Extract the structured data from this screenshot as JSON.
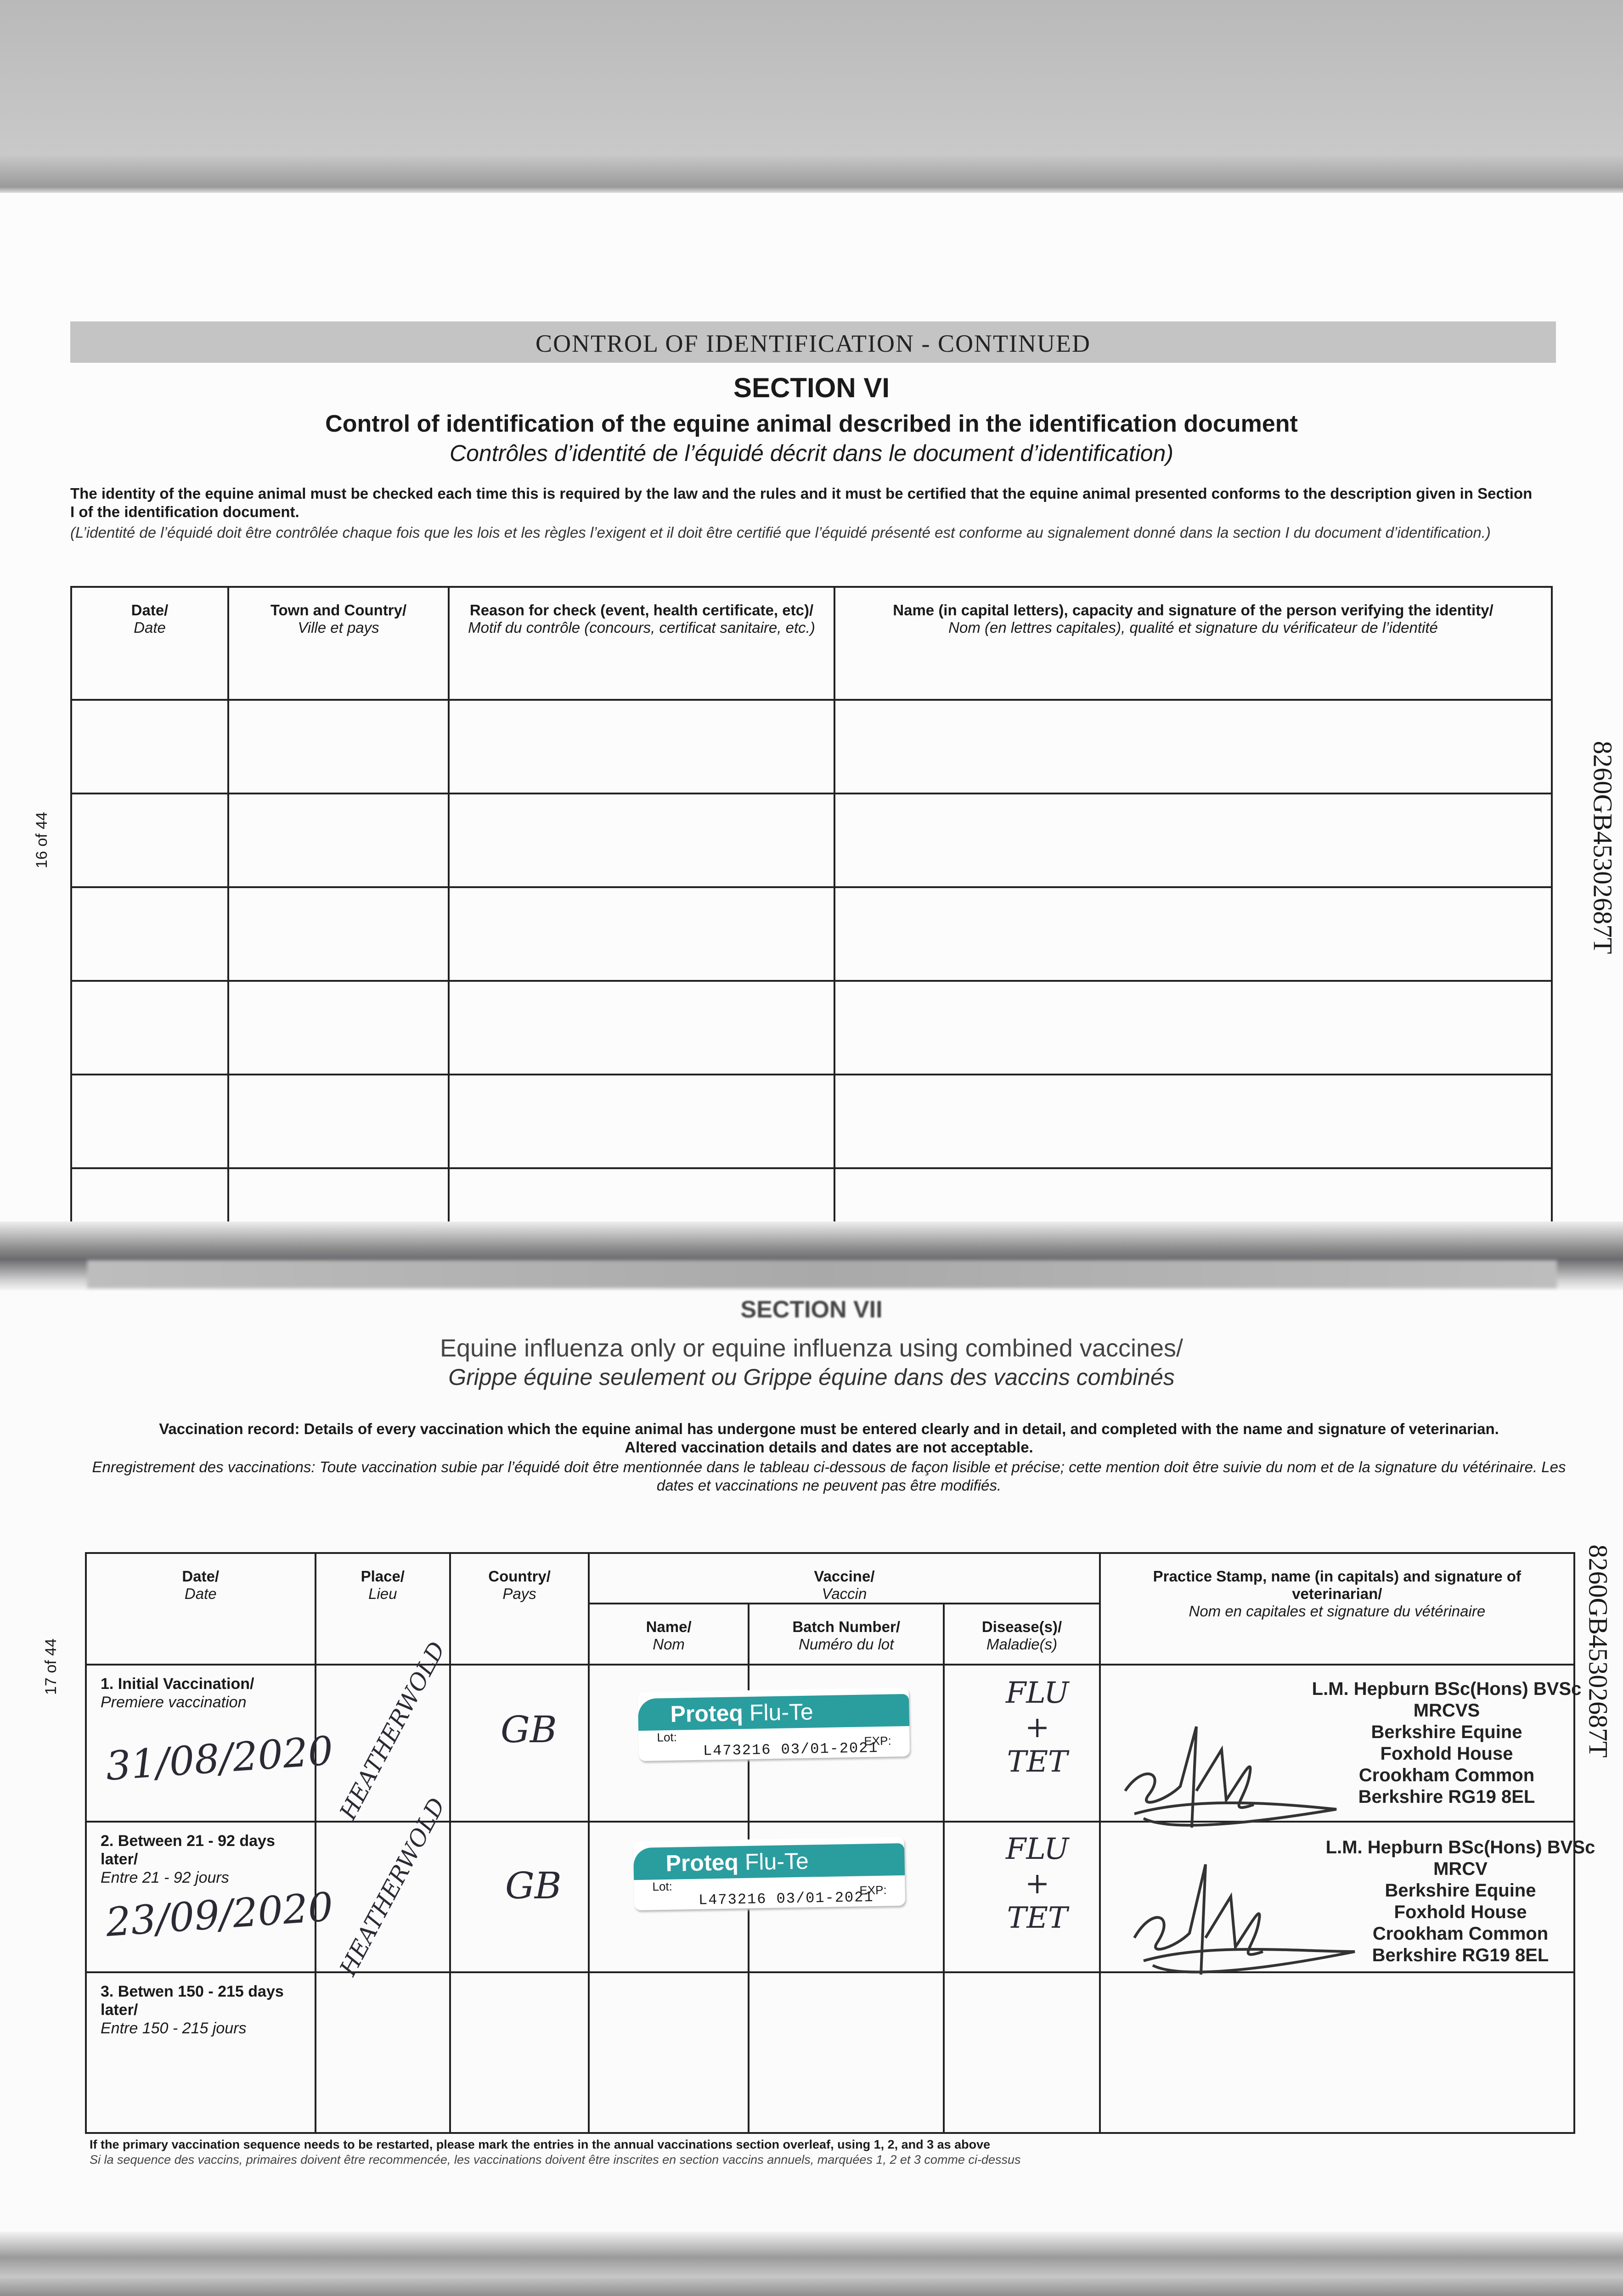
{
  "page_top": {
    "header_bar": "CONTROL OF IDENTIFICATION - CONTINUED",
    "section": "SECTION VI",
    "title": "Control of identification of the equine animal described in the identification document",
    "title_fr": "Contrôles d’identité de l’équidé décrit dans le document d’identification)",
    "intro": "The identity of the equine animal must be checked each time this is required by the law and the rules and it must be certified that the equine animal presented conforms to the description given in Section I of the identification document.",
    "intro_fr": "(L’identité de l’équidé doit être contrôlée chaque fois que les lois et les règles l’exigent et il doit être certifié que l’équidé présenté est conforme au signalement donné dans la section I du document d’identification.)",
    "page_number": "16 of 44",
    "passport_number": "8260GB45302687T",
    "table": {
      "columns": [
        {
          "label": "Date/",
          "label_fr": "Date"
        },
        {
          "label": "Town and Country/",
          "label_fr": "Ville et pays"
        },
        {
          "label": "Reason for check (event, health certificate, etc)/",
          "label_fr": "Motif du contrôle (concours, certificat sanitaire, etc.)"
        },
        {
          "label": "Name (in capital letters), capacity and signature of the person verifying the identity/",
          "label_fr": "Nom (en lettres capitales), qualité et signature du vérificateur de l’identité"
        }
      ]
    }
  },
  "page_bottom": {
    "section": "SECTION VII",
    "title": "Equine influenza only or equine influenza using combined vaccines/",
    "title_fr": "Grippe équine seulement ou Grippe équine dans des vaccins combinés",
    "intro": "Vaccination record: Details of every vaccination which the equine animal has undergone must be entered clearly and in detail, and completed with the name and signature of veterinarian.",
    "intro2": "Altered vaccination details and dates are not acceptable.",
    "intro_fr": "Enregistrement des vaccinations: Toute vaccination subie par l’équidé doit être mentionnée dans le tableau ci-dessous de façon lisible et précise; cette mention doit être suivie du nom et de la signature du vétérinaire. Les dates et vaccinations ne peuvent pas être modifiés.",
    "page_number": "17 of 44",
    "passport_number": "8260GB45302687T",
    "table": {
      "date": {
        "label": "Date/",
        "label_fr": "Date"
      },
      "place": {
        "label": "Place/",
        "label_fr": "Lieu"
      },
      "country": {
        "label": "Country/",
        "label_fr": "Pays"
      },
      "vaccine": {
        "label": "Vaccine/",
        "label_fr": "Vaccin"
      },
      "name": {
        "label": "Name/",
        "label_fr": "Nom"
      },
      "batch": {
        "label": "Batch Number/",
        "label_fr": "Numéro du lot"
      },
      "disease": {
        "label": "Disease(s)/",
        "label_fr": "Maladie(s)"
      },
      "stamp": {
        "label": "Practice Stamp, name (in capitals) and signature of veterinarian/",
        "label_fr": "Nom en capitales et signature du vétérinaire"
      },
      "rows": [
        {
          "label": "1. Initial Vaccination/",
          "label_fr": "Premiere vaccination",
          "date": "31/08/2020",
          "place": "HEATHERWOLD",
          "country": "GB",
          "vaccine_brand": "Proteq",
          "vaccine_product": "Flu-Te",
          "lot_label": "Lot:",
          "exp_label": "EXP:",
          "lot_value": "L473216  03/01-2021",
          "disease": [
            "FLU",
            "+",
            "TET"
          ],
          "stamp": [
            "L.M. Hepburn BSc(Hons) BVSc MRCVS",
            "Berkshire Equine",
            "Foxhold House",
            "Crookham Common",
            "Berkshire RG19 8EL"
          ]
        },
        {
          "label": "2. Between 21 - 92 days later/",
          "label_fr": "Entre 21 - 92 jours",
          "date": "23/09/2020",
          "place": "HEATHERWOLD",
          "country": "GB",
          "vaccine_brand": "Proteq",
          "vaccine_product": "Flu-Te",
          "lot_label": "Lot:",
          "exp_label": "EXP:",
          "lot_value": "L473216  03/01-2021",
          "disease": [
            "FLU",
            "+",
            "TET"
          ],
          "stamp": [
            "L.M. Hepburn BSc(Hons) BVSc MRCV",
            "Berkshire Equine",
            "Foxhold House",
            "Crookham Common",
            "Berkshire RG19 8EL"
          ]
        },
        {
          "label": "3. Betwen 150 - 215 days later/",
          "label_fr": "Entre 150 - 215 jours"
        }
      ]
    },
    "footnote": "If the primary vaccination sequence needs to be restarted, please mark the entries in the annual vaccinations section overleaf, using 1, 2, and 3 as above",
    "footnote_fr": "Si la sequence des vaccins, primaires doivent être recommencée, les vaccinations doivent être inscrites en section vaccins annuels, marquées 1, 2 et 3 comme ci-dessus"
  },
  "colors": {
    "sticker_teal": "#2a9d9f",
    "header_grey": "#c4c4c4"
  }
}
